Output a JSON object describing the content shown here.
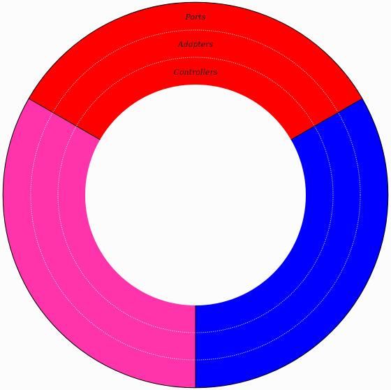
{
  "diagram": {
    "layers": [
      {
        "key": "ports",
        "label": "Ports"
      },
      {
        "key": "adapters",
        "label": "Adapters"
      },
      {
        "key": "controllers",
        "label": "Controllers"
      }
    ],
    "sections": [
      {
        "key": "top",
        "color": "#ff0000"
      },
      {
        "key": "right",
        "color": "#0000ff"
      },
      {
        "key": "left",
        "color": "#ff33aa"
      }
    ],
    "inner_fill": "#fdfcfc",
    "outline_color": "#000000"
  }
}
